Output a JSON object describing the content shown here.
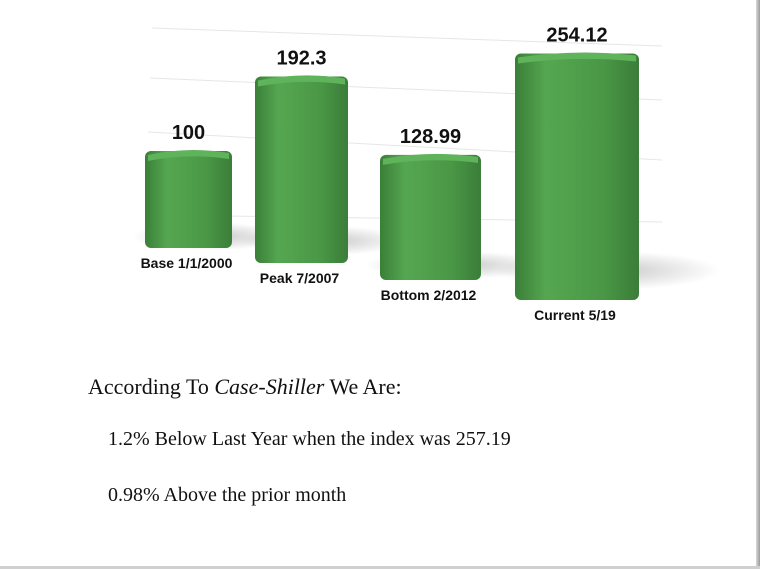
{
  "chart_data": {
    "type": "bar",
    "categories": [
      "Base 1/1/2000",
      "Peak 7/2007",
      "Bottom 2/2012",
      "Current 5/19"
    ],
    "values": [
      100,
      192.3,
      128.99,
      254.12
    ],
    "value_labels": [
      "100",
      "192.3",
      "128.99",
      "254.12"
    ],
    "ylim": [
      0,
      300
    ],
    "grid": true,
    "bar_color": "#4e9a4a"
  },
  "text": {
    "intro_prefix": "According To ",
    "intro_source": "Case-Shiller",
    "intro_suffix": " We Are:",
    "line1": "1.2% Below Last Year when the index was 257.19",
    "line2": "0.98% Above the prior month"
  }
}
